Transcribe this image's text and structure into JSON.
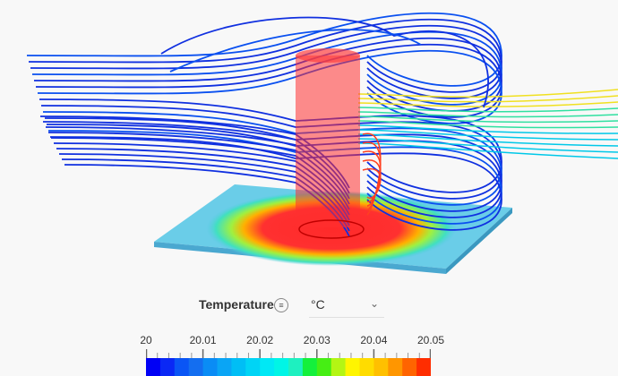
{
  "legend": {
    "title": "Temperature",
    "menu_icon": "list-icon",
    "unit": "°C",
    "dropdown_icon": "chevron-down-icon",
    "ticks": [
      "20",
      "20.01",
      "20.02",
      "20.03",
      "20.04",
      "20.05"
    ],
    "range": [
      20,
      20.05
    ],
    "colors": [
      "#0000f5",
      "#0a28f5",
      "#0a55f5",
      "#146ef0",
      "#0a8cf5",
      "#0aa5f5",
      "#00bef5",
      "#00d4f5",
      "#00e8f5",
      "#00f5e6",
      "#1ef0c0",
      "#14f03c",
      "#46ee14",
      "#b4f514",
      "#fff500",
      "#ffdc00",
      "#ffc000",
      "#ff9600",
      "#ff6400",
      "#ff2d00"
    ]
  },
  "scene": {
    "plate_color": "#5ac8e6",
    "hot_color": "#ff2020",
    "stream_colors": [
      "#1030e0",
      "#0a50f0",
      "#00c8e8",
      "#30e0a0",
      "#f0e020",
      "#ff4020"
    ]
  }
}
